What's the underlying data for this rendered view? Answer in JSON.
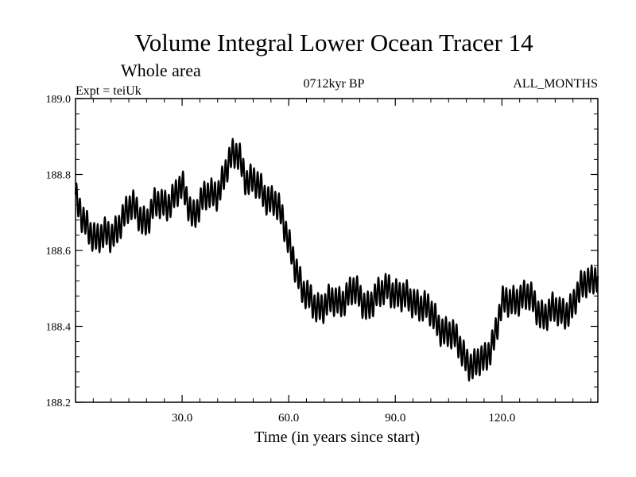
{
  "chart_data": {
    "type": "line",
    "title": "Volume Integral Lower Ocean Tracer 14",
    "subtitle": "Whole area",
    "expt_label": "Expt = teiUk",
    "center_label": "0712kyr BP",
    "right_label": "ALL_MONTHS",
    "xlabel": "Time (in years since start)",
    "ylabel": "",
    "xlim": [
      0,
      147
    ],
    "ylim": [
      188.2,
      189.0
    ],
    "x_ticks": [
      30,
      60,
      90,
      120
    ],
    "x_tick_labels": [
      "30.0",
      "60.0",
      "90.0",
      "120.0"
    ],
    "y_ticks": [
      188.2,
      188.4,
      188.6,
      188.8,
      189.0
    ],
    "y_tick_labels": [
      "188.2",
      "188.4",
      "188.6",
      "188.8",
      "189.0"
    ],
    "seasonal_amplitude": 0.035,
    "series": [
      {
        "name": "tracer14",
        "color": "#000000",
        "trend_x": [
          0,
          2,
          6,
          10,
          13,
          16,
          20,
          22,
          26,
          30,
          33,
          36,
          40,
          44,
          46,
          48,
          52,
          56,
          58,
          61,
          64,
          66,
          70,
          74,
          78,
          82,
          86,
          88,
          92,
          96,
          100,
          104,
          108,
          112,
          115,
          118,
          120,
          124,
          128,
          132,
          136,
          140,
          144,
          147
        ],
        "trend_y": [
          188.74,
          188.67,
          188.64,
          188.63,
          188.69,
          188.71,
          188.68,
          188.71,
          188.73,
          188.76,
          188.7,
          188.73,
          188.76,
          188.84,
          188.86,
          188.79,
          188.76,
          188.73,
          188.68,
          188.6,
          188.48,
          188.47,
          188.45,
          188.47,
          188.49,
          188.46,
          188.48,
          188.51,
          188.47,
          188.47,
          188.43,
          188.39,
          188.35,
          188.29,
          188.31,
          188.38,
          188.45,
          188.48,
          188.47,
          188.43,
          188.44,
          188.45,
          188.53,
          188.53
        ]
      }
    ]
  }
}
